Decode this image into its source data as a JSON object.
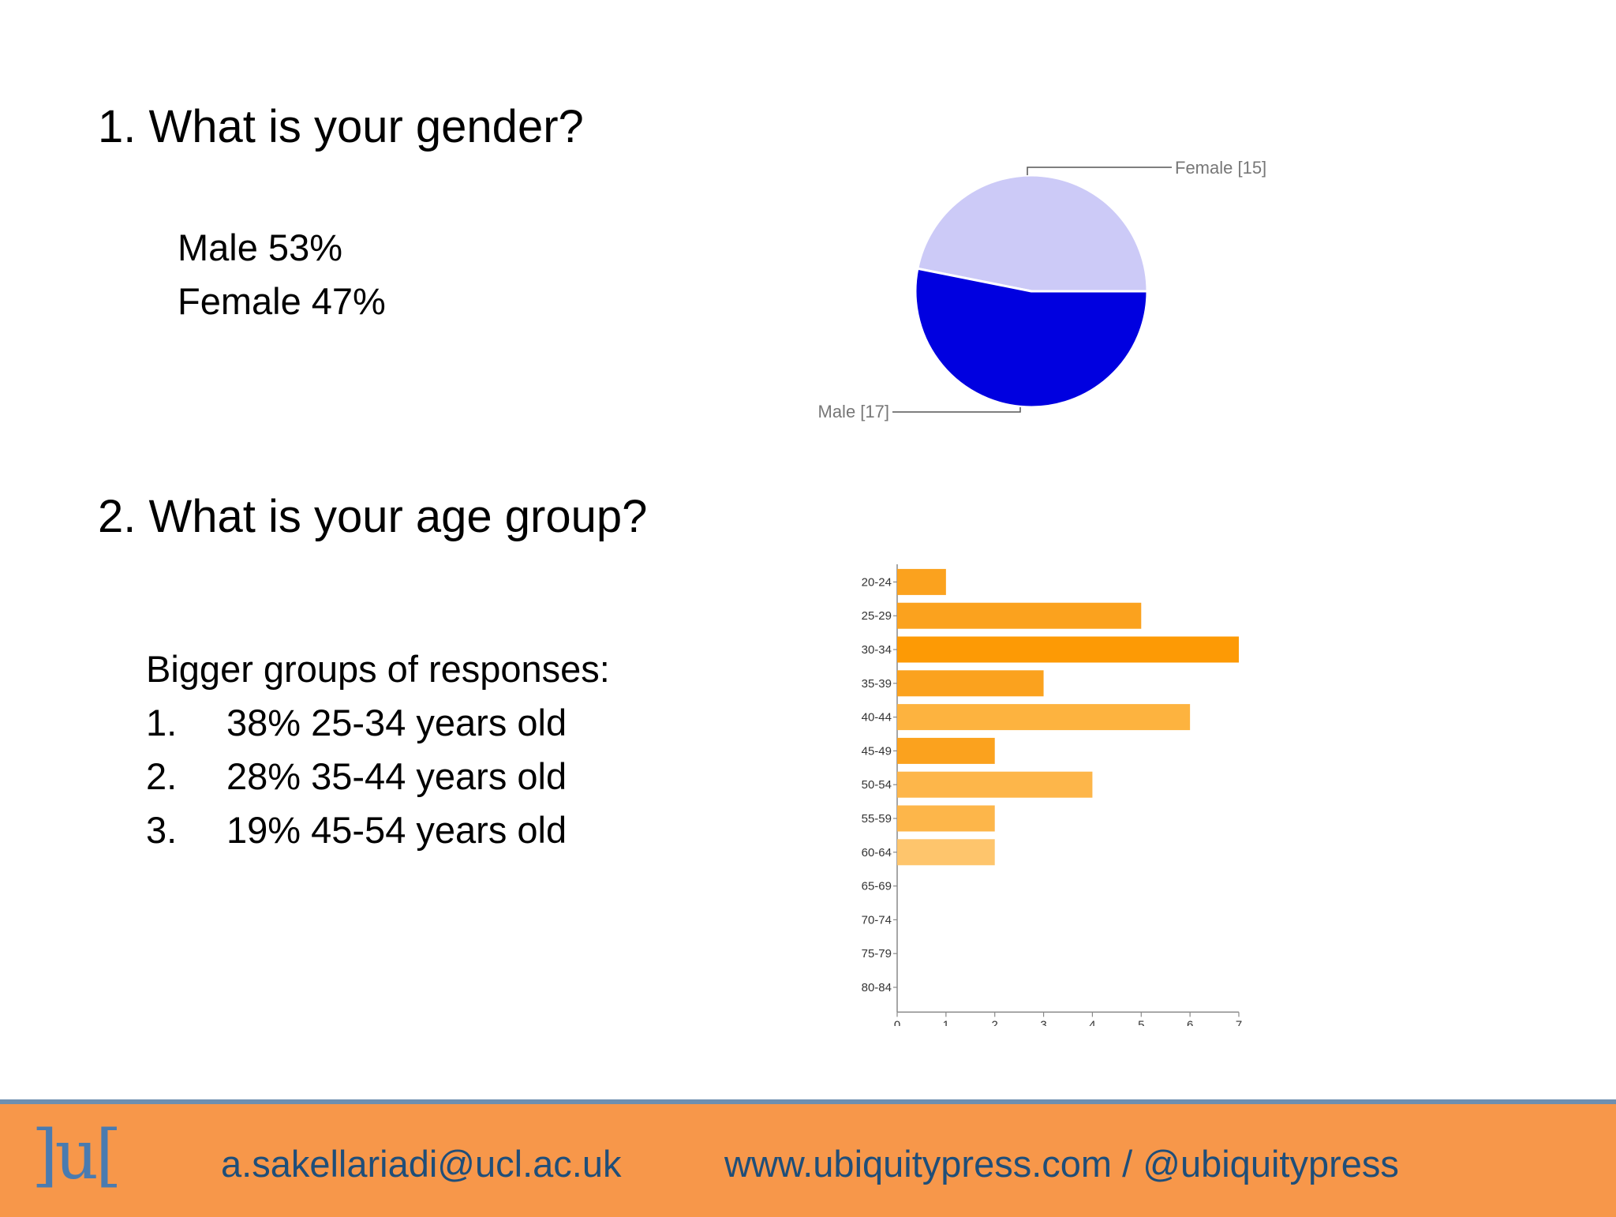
{
  "slide": {
    "q1_title": "1.  What is your gender?",
    "male_stat": "Male 53%",
    "female_stat": "Female 47%",
    "q2_title": "2. What is your age group?",
    "bigger_groups_label": "Bigger groups of responses:",
    "rankings": [
      {
        "num": "1.",
        "text": "38% 25-34 years old"
      },
      {
        "num": "2.",
        "text": "28% 35-44 years old"
      },
      {
        "num": "3.",
        "text": "19% 45-54 years old"
      }
    ]
  },
  "footer": {
    "logo": "]u[",
    "email": "a.sakellariadi@ucl.ac.uk",
    "website": "www.ubiquitypress.com / @ubiquitypress",
    "background_color": "#f7974a",
    "text_color": "#1f4e79"
  },
  "chart_data": [
    {
      "type": "pie",
      "slices": [
        {
          "label": "Female [15]",
          "value": 15,
          "color": "#cccaf7"
        },
        {
          "label": "Male [17]",
          "value": 17,
          "color": "#0000e0"
        }
      ]
    },
    {
      "type": "bar",
      "orientation": "horizontal",
      "categories": [
        "20-24",
        "25-29",
        "30-34",
        "35-39",
        "40-44",
        "45-49",
        "50-54",
        "55-59",
        "60-64",
        "65-69",
        "70-74",
        "75-79",
        "80-84"
      ],
      "values": [
        1,
        5,
        7,
        3,
        6,
        2,
        4,
        2,
        2,
        0,
        0,
        0,
        0
      ],
      "colors": [
        "#fba21e",
        "#fba21e",
        "#fd9a05",
        "#fba21e",
        "#fdb33f",
        "#fba21e",
        "#fdb64a",
        "#fdb64a",
        "#fec56c",
        "#fdb64a",
        "#fdb64a",
        "#fdb64a",
        "#fdb64a"
      ],
      "xlim": [
        0,
        7
      ],
      "xticks": [
        "0",
        "1",
        "2",
        "3",
        "4",
        "5",
        "6",
        "7"
      ]
    }
  ]
}
